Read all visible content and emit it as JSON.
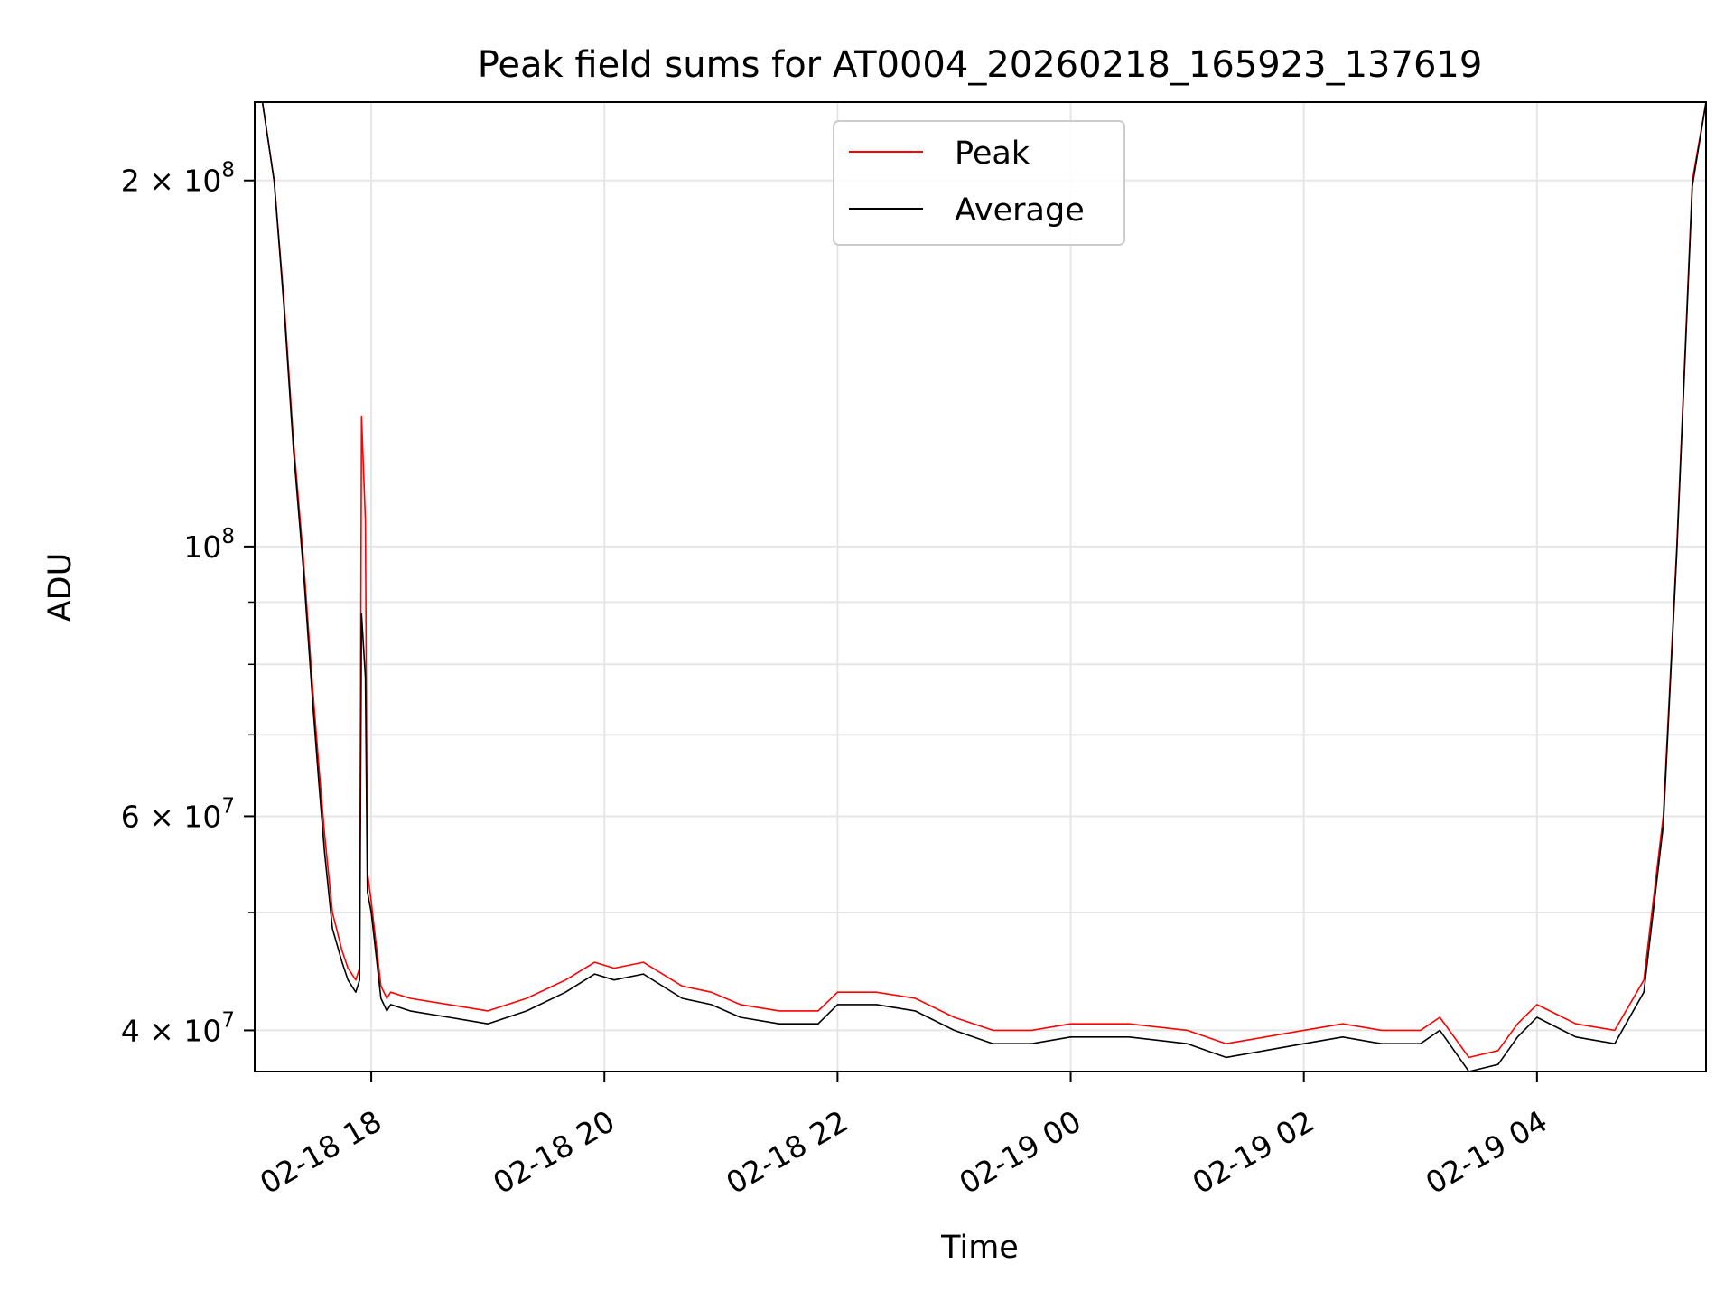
{
  "chart_data": {
    "type": "line",
    "title": "Peak field sums for AT0004_20260218_165923_137619",
    "xlabel": "Time",
    "ylabel": "ADU",
    "yscale": "log",
    "ylim": [
      37000000,
      232000000
    ],
    "xlim": [
      "2026-02-18 17:00",
      "2026-02-19 05:27"
    ],
    "grid": true,
    "legend_position": "upper-center",
    "x_ticks": [
      "02-18 18",
      "02-18 20",
      "02-18 22",
      "02-19 00",
      "02-19 02",
      "02-19 04"
    ],
    "x_tick_times": [
      "2026-02-18 18:00",
      "2026-02-18 20:00",
      "2026-02-18 22:00",
      "2026-02-19 00:00",
      "2026-02-19 02:00",
      "2026-02-19 04:00"
    ],
    "y_ticks": [
      {
        "value": 40000000,
        "label": "4 × 10",
        "exp": "7"
      },
      {
        "value": 60000000,
        "label": "6 × 10",
        "exp": "7"
      },
      {
        "value": 100000000,
        "label": "10",
        "exp": "8"
      },
      {
        "value": 200000000,
        "label": "2 × 10",
        "exp": "8"
      }
    ],
    "y_minor_ticks": [
      50000000,
      70000000,
      80000000,
      90000000
    ],
    "series": [
      {
        "name": "Peak",
        "color": "#ff0000",
        "x": [
          "2026-02-18 17:04",
          "2026-02-18 17:10",
          "2026-02-18 17:15",
          "2026-02-18 17:20",
          "2026-02-18 17:25",
          "2026-02-18 17:30",
          "2026-02-18 17:33",
          "2026-02-18 17:36",
          "2026-02-18 17:40",
          "2026-02-18 17:45",
          "2026-02-18 17:48",
          "2026-02-18 17:52",
          "2026-02-18 17:54",
          "2026-02-18 17:55",
          "2026-02-18 17:57",
          "2026-02-18 17:58",
          "2026-02-18 18:00",
          "2026-02-18 18:05",
          "2026-02-18 18:08",
          "2026-02-18 18:10",
          "2026-02-18 18:20",
          "2026-02-18 18:40",
          "2026-02-18 19:00",
          "2026-02-18 19:20",
          "2026-02-18 19:40",
          "2026-02-18 19:55",
          "2026-02-18 20:05",
          "2026-02-18 20:20",
          "2026-02-18 20:40",
          "2026-02-18 20:55",
          "2026-02-18 21:10",
          "2026-02-18 21:30",
          "2026-02-18 21:50",
          "2026-02-18 22:00",
          "2026-02-18 22:20",
          "2026-02-18 22:40",
          "2026-02-18 23:00",
          "2026-02-18 23:20",
          "2026-02-18 23:40",
          "2026-02-19 00:00",
          "2026-02-19 00:30",
          "2026-02-19 01:00",
          "2026-02-19 01:20",
          "2026-02-19 01:40",
          "2026-02-19 02:00",
          "2026-02-19 02:20",
          "2026-02-19 02:40",
          "2026-02-19 03:00",
          "2026-02-19 03:10",
          "2026-02-19 03:25",
          "2026-02-19 03:40",
          "2026-02-19 03:50",
          "2026-02-19 04:00",
          "2026-02-19 04:20",
          "2026-02-19 04:40",
          "2026-02-19 04:55",
          "2026-02-19 05:05",
          "2026-02-19 05:12",
          "2026-02-19 05:20",
          "2026-02-19 05:27"
        ],
        "values": [
          232000000,
          200000000,
          160000000,
          122000000,
          98000000,
          76000000,
          66000000,
          58000000,
          50000000,
          46500000,
          45000000,
          44000000,
          45000000,
          128000000,
          105000000,
          54000000,
          51000000,
          43500000,
          42500000,
          43000000,
          42500000,
          42000000,
          41500000,
          42500000,
          44000000,
          45500000,
          45000000,
          45500000,
          43500000,
          43000000,
          42000000,
          41500000,
          41500000,
          43000000,
          43000000,
          42500000,
          41000000,
          40000000,
          40000000,
          40500000,
          40500000,
          40000000,
          39000000,
          39500000,
          40000000,
          40500000,
          40000000,
          40000000,
          41000000,
          38000000,
          38500000,
          40500000,
          42000000,
          40500000,
          40000000,
          44000000,
          60000000,
          100000000,
          200000000,
          232000000
        ]
      },
      {
        "name": "Average",
        "color": "#000000",
        "x": [
          "2026-02-18 17:04",
          "2026-02-18 17:10",
          "2026-02-18 17:15",
          "2026-02-18 17:20",
          "2026-02-18 17:25",
          "2026-02-18 17:30",
          "2026-02-18 17:33",
          "2026-02-18 17:36",
          "2026-02-18 17:40",
          "2026-02-18 17:45",
          "2026-02-18 17:48",
          "2026-02-18 17:52",
          "2026-02-18 17:54",
          "2026-02-18 17:55",
          "2026-02-18 17:57",
          "2026-02-18 17:58",
          "2026-02-18 18:00",
          "2026-02-18 18:05",
          "2026-02-18 18:08",
          "2026-02-18 18:10",
          "2026-02-18 18:20",
          "2026-02-18 18:40",
          "2026-02-18 19:00",
          "2026-02-18 19:20",
          "2026-02-18 19:40",
          "2026-02-18 19:55",
          "2026-02-18 20:05",
          "2026-02-18 20:20",
          "2026-02-18 20:40",
          "2026-02-18 20:55",
          "2026-02-18 21:10",
          "2026-02-18 21:30",
          "2026-02-18 21:50",
          "2026-02-18 22:00",
          "2026-02-18 22:20",
          "2026-02-18 22:40",
          "2026-02-18 23:00",
          "2026-02-18 23:20",
          "2026-02-18 23:40",
          "2026-02-19 00:00",
          "2026-02-19 00:30",
          "2026-02-19 01:00",
          "2026-02-19 01:20",
          "2026-02-19 01:40",
          "2026-02-19 02:00",
          "2026-02-19 02:20",
          "2026-02-19 02:40",
          "2026-02-19 03:00",
          "2026-02-19 03:10",
          "2026-02-19 03:25",
          "2026-02-19 03:40",
          "2026-02-19 03:50",
          "2026-02-19 04:00",
          "2026-02-19 04:20",
          "2026-02-19 04:40",
          "2026-02-19 04:55",
          "2026-02-19 05:05",
          "2026-02-19 05:12",
          "2026-02-19 05:20",
          "2026-02-19 05:27"
        ],
        "values": [
          232000000,
          200000000,
          158000000,
          120000000,
          96000000,
          74000000,
          64000000,
          56000000,
          48500000,
          45500000,
          44000000,
          43000000,
          44000000,
          88000000,
          78000000,
          52000000,
          50000000,
          42500000,
          41500000,
          42000000,
          41500000,
          41000000,
          40500000,
          41500000,
          43000000,
          44500000,
          44000000,
          44500000,
          42500000,
          42000000,
          41000000,
          40500000,
          40500000,
          42000000,
          42000000,
          41500000,
          40000000,
          39000000,
          39000000,
          39500000,
          39500000,
          39000000,
          38000000,
          38500000,
          39000000,
          39500000,
          39000000,
          39000000,
          40000000,
          37000000,
          37500000,
          39500000,
          41000000,
          39500000,
          39000000,
          43000000,
          59000000,
          99000000,
          198000000,
          232000000
        ]
      }
    ]
  }
}
